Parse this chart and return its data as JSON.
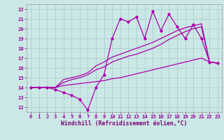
{
  "xlabel": "Windchill (Refroidissement éolien,°C)",
  "xlim": [
    -0.5,
    23.5
  ],
  "ylim": [
    11.5,
    22.5
  ],
  "xticks": [
    0,
    1,
    2,
    3,
    4,
    5,
    6,
    7,
    8,
    9,
    10,
    11,
    12,
    13,
    14,
    15,
    16,
    17,
    18,
    19,
    20,
    21,
    22,
    23
  ],
  "yticks": [
    12,
    13,
    14,
    15,
    16,
    17,
    18,
    19,
    20,
    21,
    22
  ],
  "bg_color": "#cce8e6",
  "grid_color": "#aacfcc",
  "line_color": "#aa00aa",
  "tick_color": "#990099",
  "label_color": "#770077",
  "series1": [
    14.0,
    14.0,
    14.0,
    13.8,
    13.5,
    13.2,
    12.8,
    11.7,
    14.0,
    15.3,
    19.0,
    21.0,
    20.7,
    21.2,
    19.0,
    21.8,
    19.8,
    21.5,
    20.2,
    19.0,
    20.4,
    19.0,
    16.6,
    16.5
  ],
  "series2": [
    14.0,
    14.0,
    14.0,
    14.0,
    14.8,
    15.0,
    15.2,
    15.5,
    16.2,
    16.6,
    17.1,
    17.4,
    17.7,
    18.0,
    18.3,
    18.6,
    19.0,
    19.4,
    19.8,
    20.1,
    20.3,
    20.5,
    16.6,
    16.5
  ],
  "series3": [
    14.0,
    14.0,
    14.0,
    14.0,
    14.5,
    14.8,
    15.0,
    15.3,
    15.8,
    16.1,
    16.6,
    16.9,
    17.2,
    17.4,
    17.7,
    18.0,
    18.4,
    18.9,
    19.3,
    19.7,
    20.0,
    20.2,
    16.6,
    16.5
  ],
  "series4": [
    14.0,
    14.0,
    14.0,
    14.0,
    14.2,
    14.3,
    14.4,
    14.5,
    14.6,
    14.7,
    14.9,
    15.0,
    15.2,
    15.4,
    15.6,
    15.8,
    16.0,
    16.2,
    16.4,
    16.6,
    16.8,
    17.0,
    16.6,
    16.5
  ]
}
